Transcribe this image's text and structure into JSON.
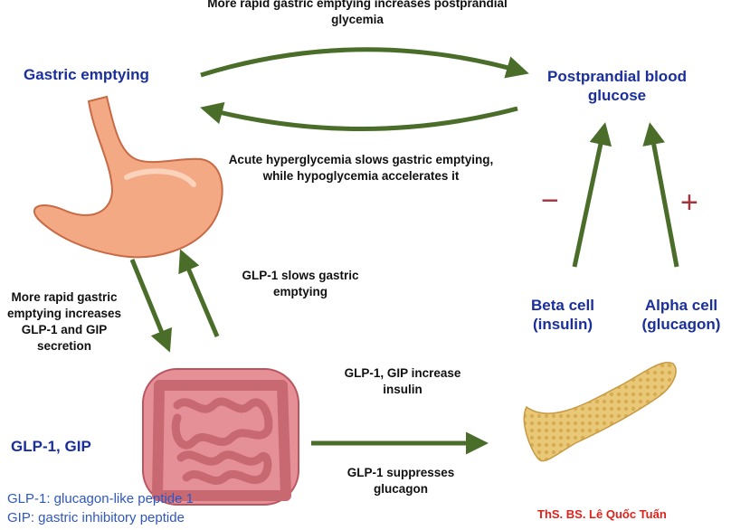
{
  "labels": {
    "top_arrow_caption": "More rapid gastric emptying increases postprandial glycemia",
    "gastric_emptying": "Gastric emptying",
    "ppbg": "Postprandial blood glucose",
    "bottom_arrow_caption": "Acute hyperglycemia slows gastric emptying, while hypoglycemia accelerates it",
    "glp1_slows": "GLP-1 slows gastric emptying",
    "more_rapid_secretion": "More rapid gastric emptying increases GLP-1 and GIP secretion",
    "beta_cell": "Beta cell (insulin)",
    "alpha_cell": "Alpha cell (glucagon)",
    "minus": "−",
    "plus": "+",
    "glp_gip": "GLP-1, GIP",
    "increase_insulin": "GLP-1, GIP increase insulin",
    "suppress_glucagon": "GLP-1 suppresses glucagon",
    "def_glp1": "GLP-1: glucagon-like peptide 1",
    "def_gip": "GIP: gastric inhibitory peptide",
    "author": "ThS. BS. Lê Quốc Tuấn"
  },
  "icons": {
    "stomach": "stomach-icon",
    "intestines": "intestines-icon",
    "pancreas": "pancreas-icon"
  },
  "colors": {
    "arrow": "#4a6e2a",
    "title_blue": "#1a2f9c",
    "note_blue": "#2f57c2",
    "author_red": "#e0201a",
    "sign_red": "#a8323a"
  }
}
